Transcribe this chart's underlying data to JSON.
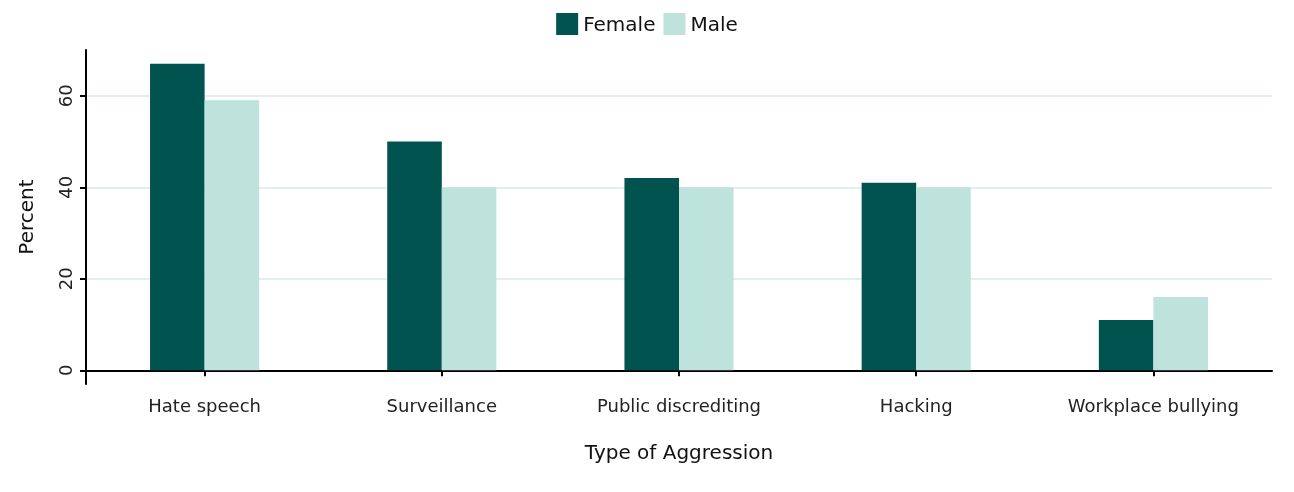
{
  "chart_data": {
    "type": "bar",
    "xlabel": "Type of Aggression",
    "ylabel": "Percent",
    "categories": [
      "Hate speech",
      "Surveillance",
      "Public discrediting",
      "Hacking",
      "Workplace bullying"
    ],
    "series": [
      {
        "name": "Female",
        "color": "#01534f",
        "values": [
          67,
          50,
          42,
          41,
          11
        ]
      },
      {
        "name": "Male",
        "color": "#bde3dc",
        "values": [
          59,
          40,
          40,
          40,
          16
        ]
      }
    ],
    "ylim": [
      -3,
      70
    ],
    "yticks": [
      0,
      20,
      40,
      60
    ],
    "grid": "y",
    "legend": "top"
  }
}
